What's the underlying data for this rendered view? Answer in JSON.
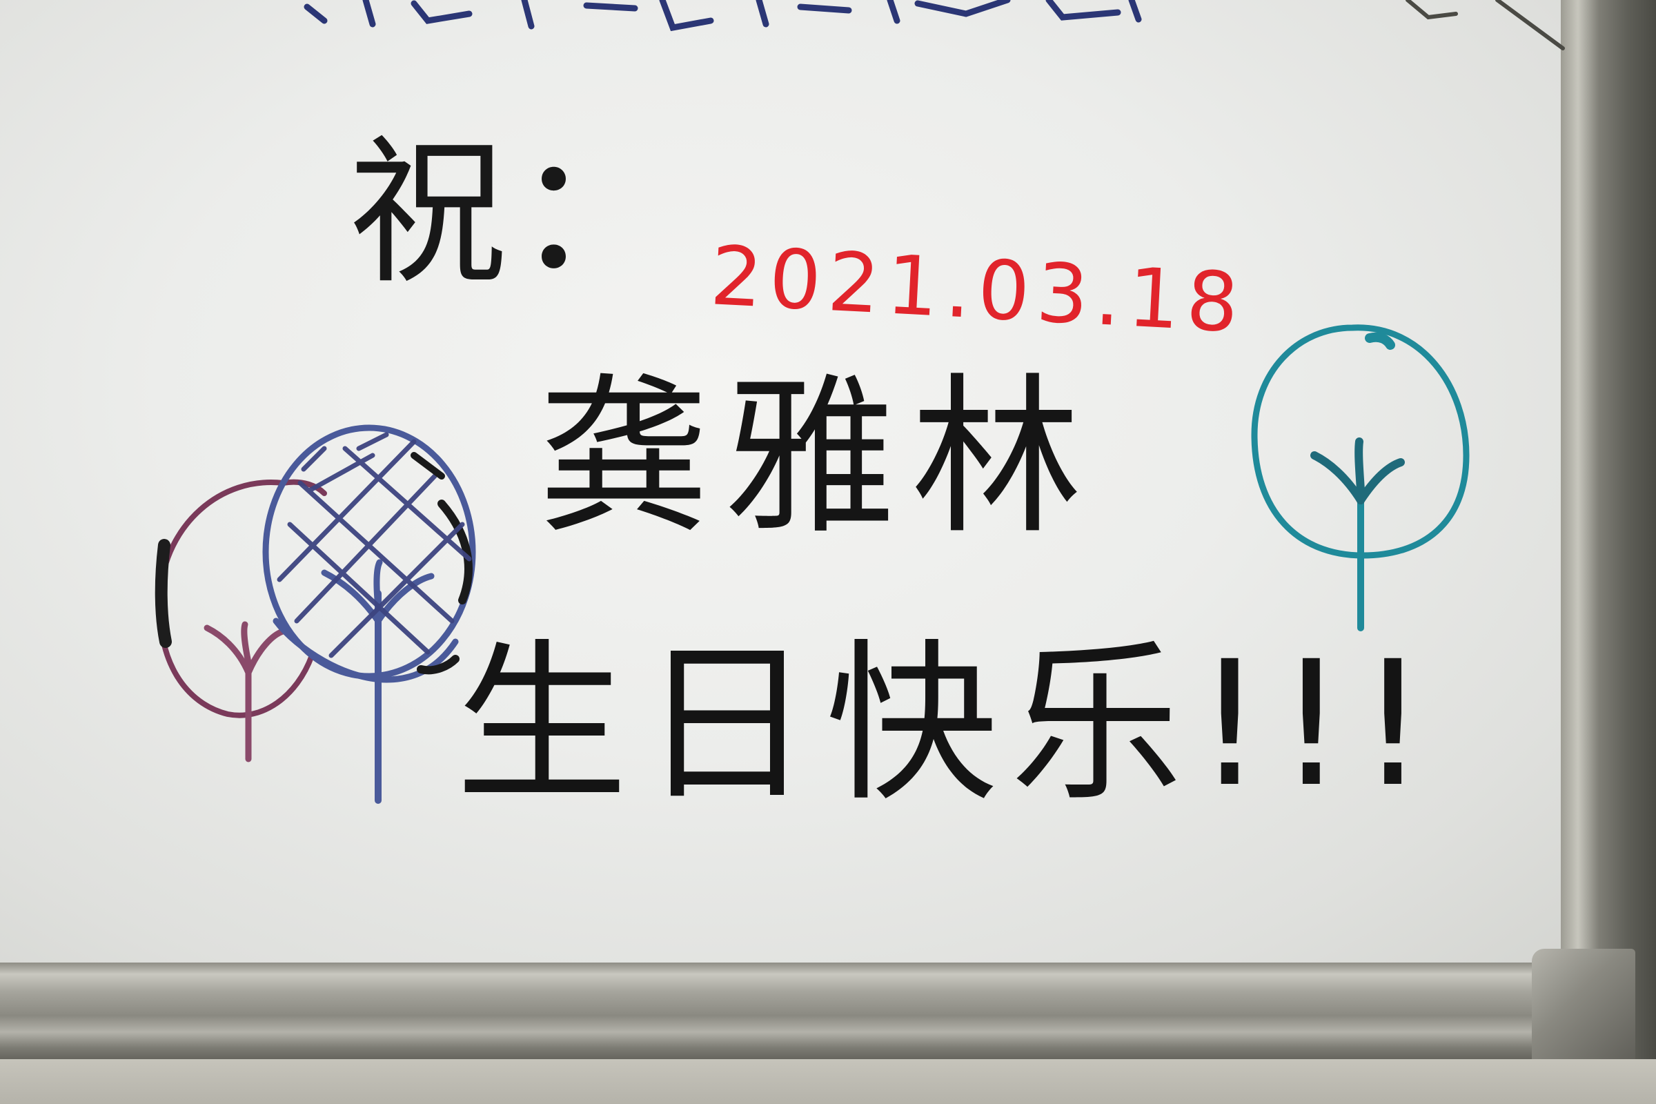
{
  "whiteboard": {
    "top_fragment": "",
    "greeting_prefix": "祝：",
    "date": "2021.03.18",
    "name": "龚雅林",
    "wish": "生日快乐!!!"
  },
  "drawings": {
    "left_tree_color": "#7a3a5a",
    "middle_tree_color": "#4a5a9a",
    "right_tree_color": "#1f8a9a",
    "ink_black": "#151515",
    "ink_red": "#e1242b"
  }
}
